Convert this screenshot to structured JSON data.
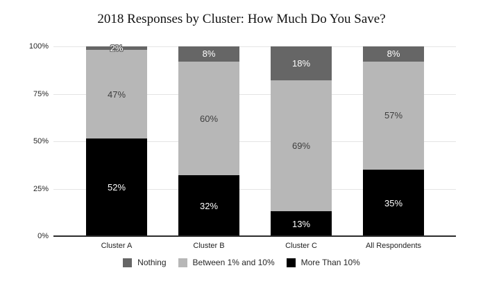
{
  "chart_data": {
    "type": "bar",
    "stacked": true,
    "title": "2018 Responses by Cluster: How Much Do You Save?",
    "categories": [
      "Cluster A",
      "Cluster B",
      "Cluster C",
      "All Respondents"
    ],
    "series": [
      {
        "name": "Nothing",
        "color": "#666666",
        "label_color": "#ffffff",
        "values": [
          2,
          8,
          18,
          8
        ]
      },
      {
        "name": "Between 1% and 10%",
        "color": "#b7b7b7",
        "label_color": "#3d3d3d",
        "values": [
          47,
          60,
          69,
          57
        ]
      },
      {
        "name": "More Than 10%",
        "color": "#000000",
        "label_color": "#ffffff",
        "values": [
          52,
          32,
          13,
          35
        ]
      }
    ],
    "data_label_suffix": "%",
    "y_ticks": [
      "100%",
      "75%",
      "50%",
      "25%",
      "0%"
    ],
    "ylim": [
      0,
      100
    ],
    "grid": true,
    "legend_position": "bottom",
    "colors": {
      "background": "#ffffff",
      "gridline": "#e4e4e4",
      "axis_line": "#2b2b2b",
      "tick_text": "#262626"
    }
  }
}
